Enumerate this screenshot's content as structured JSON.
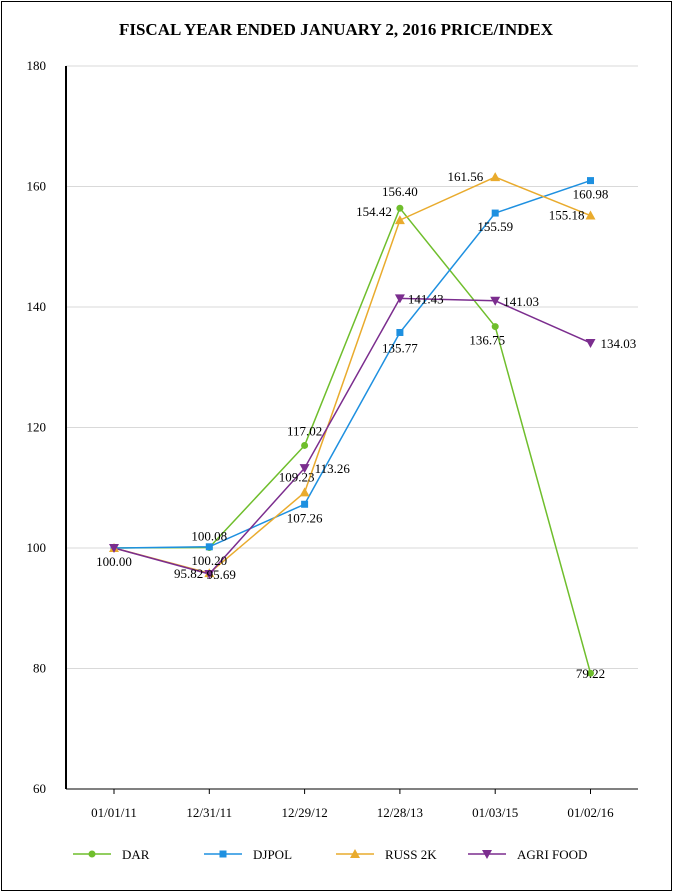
{
  "chart_data": {
    "type": "line",
    "title": "FISCAL YEAR ENDED JANUARY 2, 2016 PRICE/INDEX",
    "xlabel": "",
    "ylabel": "",
    "categories": [
      "01/01/11",
      "12/31/11",
      "12/29/12",
      "12/28/13",
      "01/03/15",
      "01/02/16"
    ],
    "ylim": [
      60,
      180
    ],
    "yticks": [
      "60",
      "80",
      "100",
      "120",
      "140",
      "160",
      "180"
    ],
    "grid": true,
    "legend_position": "bottom",
    "series": [
      {
        "name": "DAR",
        "color": "#6fbe2c",
        "marker": "circle",
        "values": [
          100.0,
          100.08,
          117.02,
          156.4,
          136.75,
          79.22
        ],
        "labels": [
          "",
          "100.08",
          "117.02",
          "156.40",
          "136.75",
          "79.22"
        ]
      },
      {
        "name": "DJPOL",
        "color": "#1e90e0",
        "marker": "square",
        "values": [
          100.0,
          100.2,
          107.26,
          135.77,
          155.59,
          160.98
        ],
        "labels": [
          "",
          "100.20",
          "107.26",
          "135.77",
          "155.59",
          "160.98"
        ]
      },
      {
        "name": "RUSS 2K",
        "color": "#e9ab2d",
        "marker": "triangle-up",
        "values": [
          100.0,
          95.82,
          109.23,
          154.42,
          161.56,
          155.18
        ],
        "labels": [
          "100.00",
          "95.82",
          "109.23",
          "154.42",
          "161.56",
          "155.18"
        ]
      },
      {
        "name": "AGRI FOOD",
        "color": "#7b2d8e",
        "marker": "triangle-down",
        "values": [
          100.0,
          95.69,
          113.26,
          141.43,
          141.03,
          134.03
        ],
        "labels": [
          "",
          "95.69",
          "113.26",
          "141.43",
          "141.03",
          "134.03"
        ]
      }
    ]
  }
}
